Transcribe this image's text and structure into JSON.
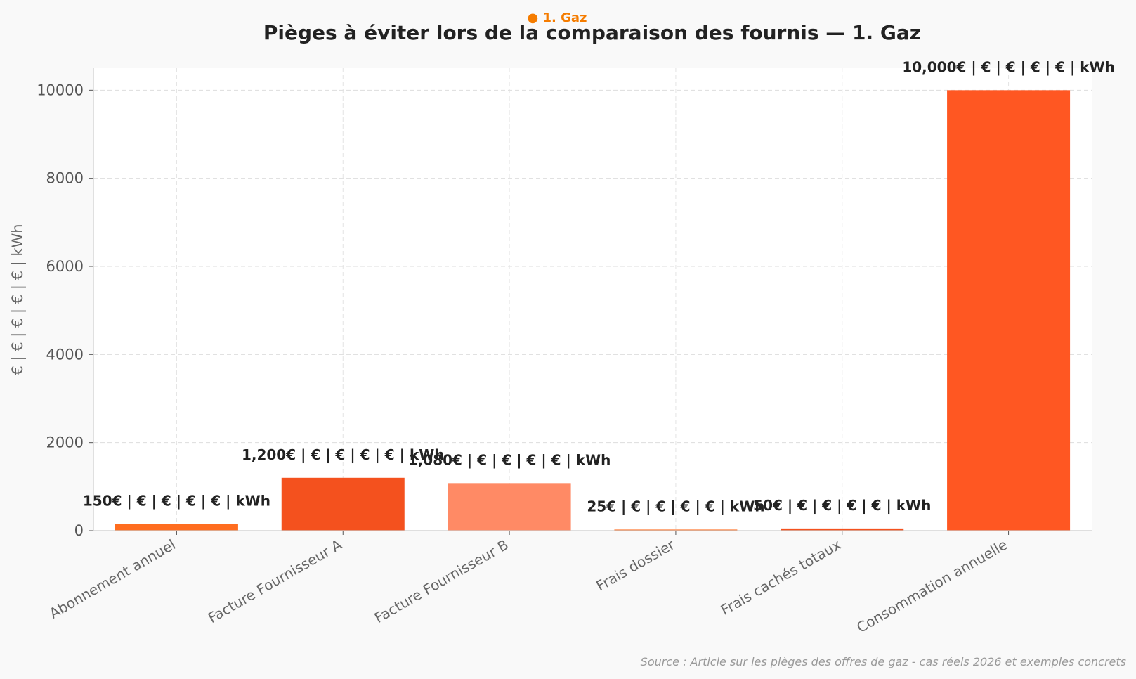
{
  "chart_data": {
    "type": "bar",
    "tag": "● 1. Gaz",
    "title": "Pièges à éviter lors de la comparaison des fournis — 1. Gaz",
    "ylabel": "€ | € | € | € | € | kWh",
    "xlabel": "",
    "categories": [
      "Abonnement annuel",
      "Facture Fournisseur A",
      "Facture Fournisseur B",
      "Frais dossier",
      "Frais cachés totaux",
      "Consommation annuelle"
    ],
    "values": [
      150,
      1200,
      1080,
      25,
      50,
      10000
    ],
    "data_labels": [
      "150€ | € | € | € | € | kWh",
      "1,200€ | € | € | € | € | kWh",
      "1,080€ | € | € | € | € | kWh",
      "25€ | € | € | € | € | kWh",
      "50€ | € | € | € | € | kWh",
      "10,000€ | € | € | € | € | kWh"
    ],
    "colors": [
      "#ff6d1f",
      "#f4511e",
      "#ff8a65",
      "#ff6d1f",
      "#f4511e",
      "#ff5722"
    ],
    "yticks": [
      0,
      2000,
      4000,
      6000,
      8000,
      10000
    ],
    "ylim": [
      0,
      10500
    ],
    "grid": true,
    "source": "Source : Article sur les pièges des offres de gaz - cas réels 2026 et exemples concrets",
    "accent_color": "#f57c00"
  }
}
